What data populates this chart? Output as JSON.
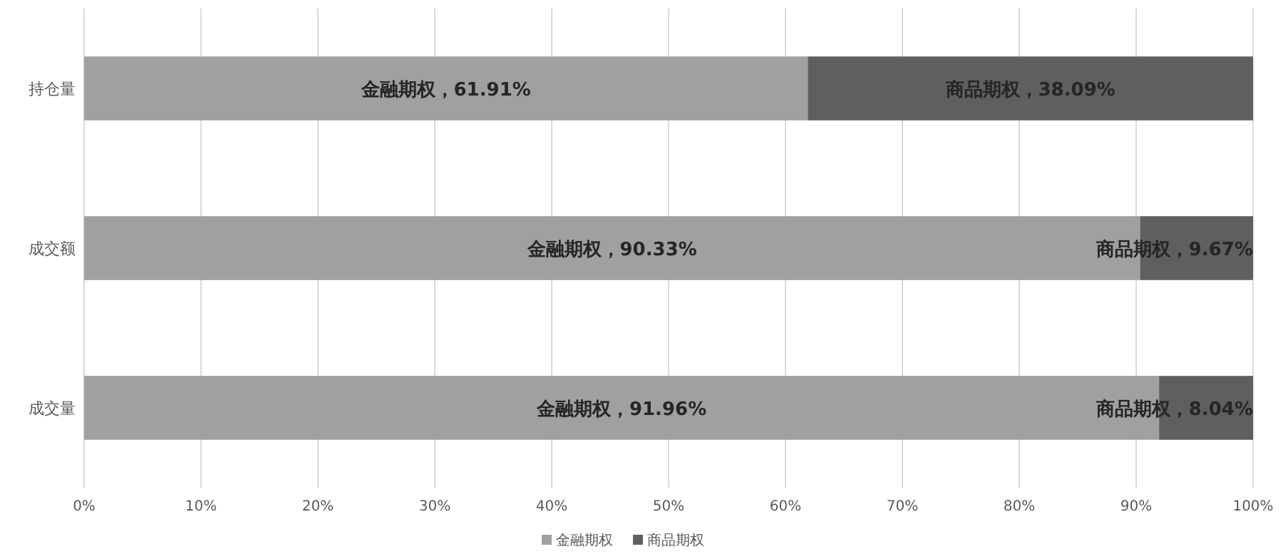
{
  "chart_data": {
    "type": "bar",
    "orientation": "horizontal",
    "stacked": true,
    "categories": [
      "持仓量",
      "成交额",
      "成交量"
    ],
    "series": [
      {
        "name": "金融期权",
        "color": "#a0a0a0",
        "values": [
          61.91,
          90.33,
          91.96
        ],
        "value_labels": [
          "金融期权，61.91%",
          "金融期权，90.33%",
          "金融期权，91.96%"
        ]
      },
      {
        "name": "商品期权",
        "color": "#5f5f5f",
        "values": [
          38.09,
          9.67,
          8.04
        ],
        "value_labels": [
          "商品期权，38.09%",
          "商品期权，9.67%",
          "商品期权，8.04%"
        ]
      }
    ],
    "xlim": [
      0,
      100
    ],
    "xticks": [
      {
        "value": 0,
        "label": "0%"
      },
      {
        "value": 10,
        "label": "10%"
      },
      {
        "value": 20,
        "label": "20%"
      },
      {
        "value": 30,
        "label": "30%"
      },
      {
        "value": 40,
        "label": "40%"
      },
      {
        "value": 50,
        "label": "50%"
      },
      {
        "value": 60,
        "label": "60%"
      },
      {
        "value": 70,
        "label": "70%"
      },
      {
        "value": 80,
        "label": "80%"
      },
      {
        "value": 90,
        "label": "90%"
      },
      {
        "value": 100,
        "label": "100%"
      }
    ],
    "grid": "x",
    "legend": "bottom"
  }
}
